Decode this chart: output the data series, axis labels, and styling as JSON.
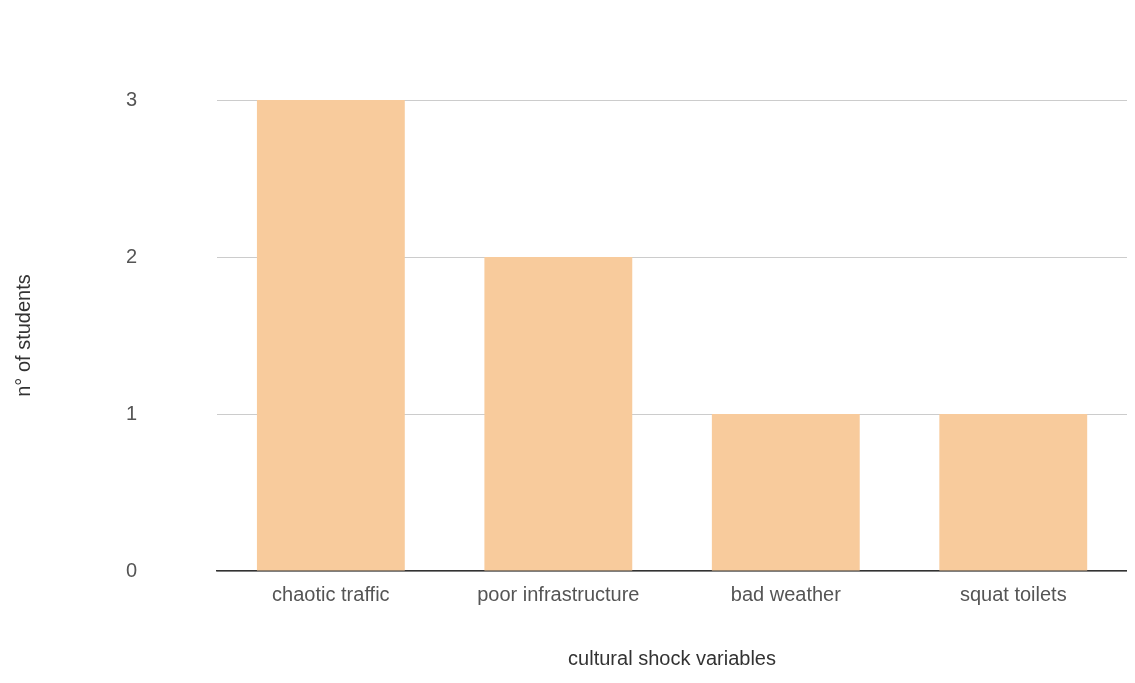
{
  "chart_data": {
    "type": "bar",
    "xlabel": "cultural shock variables",
    "ylabel": "n° of students",
    "categories": [
      "chaotic traffic",
      "poor infrastructure",
      "bad weather",
      "squat toilets"
    ],
    "values": [
      3,
      2,
      1,
      1
    ],
    "color": "#f8cb9c",
    "ylim": [
      0,
      3
    ],
    "yticks": [
      0,
      1,
      2,
      3
    ],
    "grid": "y"
  }
}
